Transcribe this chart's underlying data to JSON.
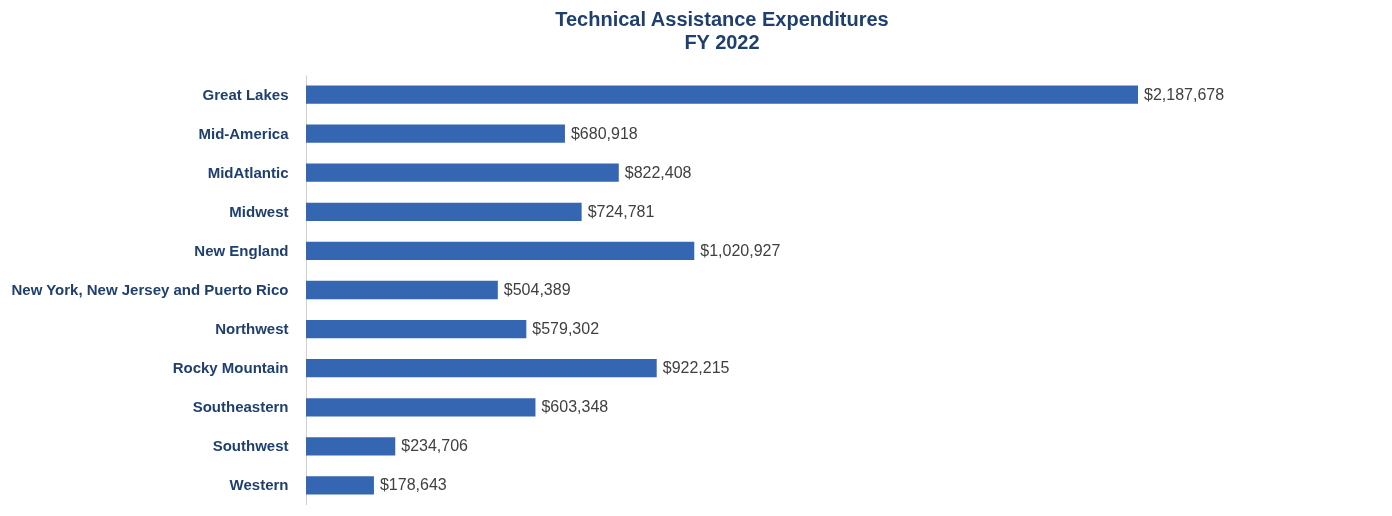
{
  "chart_data": {
    "type": "bar",
    "orientation": "horizontal",
    "relative": false,
    "title": "Technical Assistance Expenditures",
    "subtitle": "FY 2022",
    "categories": [
      "Great Lakes",
      "Mid-America",
      "MidAtlantic",
      "Midwest",
      "New England",
      "New York, New Jersey and Puerto Rico",
      "Northwest",
      "Rocky Mountain",
      "Southeastern",
      "Southwest",
      "Western"
    ],
    "values": [
      2187678,
      680918,
      822408,
      724781,
      1020927,
      504389,
      579302,
      922215,
      603348,
      234706,
      178643
    ],
    "value_labels": [
      "$2,187,678",
      "$680,918",
      "$822,408",
      "$724,781",
      "$1,020,927",
      "$504,389",
      "$579,302",
      "$922,215",
      "$603,348",
      "$234,706",
      "$178,643"
    ],
    "color": "#3566b2"
  }
}
